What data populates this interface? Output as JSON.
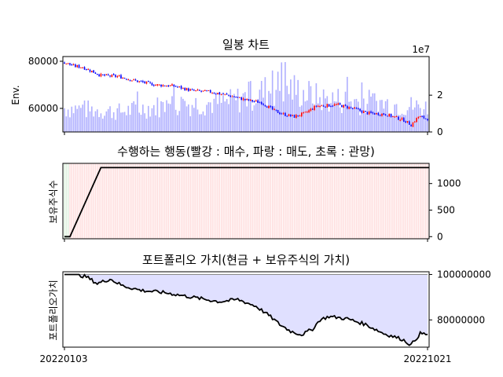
{
  "chart_data": [
    {
      "type": "candlestick+bar",
      "title": "일봉 차트",
      "ylabel": "Env.",
      "ylim": [
        50000,
        82000
      ],
      "yticks": [
        60000,
        80000
      ],
      "y2lim": [
        0,
        4.1
      ],
      "y2ticks": [
        0,
        2
      ],
      "y2_offset_label": "1e7",
      "n_days": 200,
      "close_keypoints": [
        [
          0,
          79500
        ],
        [
          5,
          78000
        ],
        [
          10,
          77500
        ],
        [
          20,
          74000
        ],
        [
          30,
          73500
        ],
        [
          40,
          71500
        ],
        [
          50,
          70000
        ],
        [
          60,
          69500
        ],
        [
          70,
          67500
        ],
        [
          80,
          67000
        ],
        [
          90,
          65500
        ],
        [
          100,
          63500
        ],
        [
          108,
          62500
        ],
        [
          115,
          59000
        ],
        [
          120,
          57500
        ],
        [
          126,
          56500
        ],
        [
          132,
          58000
        ],
        [
          138,
          61000
        ],
        [
          150,
          61500
        ],
        [
          158,
          60000
        ],
        [
          166,
          58000
        ],
        [
          176,
          57500
        ],
        [
          186,
          55000
        ],
        [
          190,
          53000
        ],
        [
          194,
          56500
        ],
        [
          200,
          55500
        ]
      ],
      "volume_keypoints": [
        [
          0,
          1.3
        ],
        [
          30,
          1.1
        ],
        [
          60,
          1.5
        ],
        [
          90,
          1.6
        ],
        [
          120,
          2.5
        ],
        [
          140,
          1.8
        ],
        [
          170,
          1.6
        ],
        [
          200,
          1.3
        ]
      ],
      "up_color": "#ff0000",
      "down_color": "#0000ff",
      "volume_color": "#b0b0ff"
    },
    {
      "type": "line",
      "title": "수행하는 행동(빨강 : 매수, 파랑 : 매도, 초록 : 관망)",
      "ylabel": "보유주식수",
      "ylim": [
        -40,
        1380
      ],
      "yticks": [
        0,
        500,
        1000
      ],
      "series_points": [
        [
          0,
          0
        ],
        [
          3,
          0
        ],
        [
          20,
          1300
        ],
        [
          200,
          1300
        ]
      ],
      "action_colors": {
        "buy": "#ffdcdc",
        "sell": "#dcdcff",
        "hold": "#dcf0dc"
      },
      "first_actions_hold": 3
    },
    {
      "type": "area",
      "title": "포트폴리오 가치(현금 + 보유주식의 가치)",
      "ylabel": "포트폴리오가치",
      "ylim": [
        68000000,
        101200000
      ],
      "yticks": [
        80000000,
        100000000
      ],
      "ytick_labels": [
        "80000000",
        "100000000"
      ],
      "baseline": 100000000,
      "x_tick_labels": [
        "20220103",
        "20221021"
      ],
      "value_keypoints": [
        [
          0,
          100000000
        ],
        [
          6,
          100000000
        ],
        [
          12,
          99000000
        ],
        [
          18,
          96000000
        ],
        [
          25,
          98000000
        ],
        [
          32,
          95000000
        ],
        [
          42,
          93000000
        ],
        [
          55,
          92000000
        ],
        [
          70,
          90000000
        ],
        [
          85,
          88000000
        ],
        [
          95,
          89000000
        ],
        [
          105,
          86000000
        ],
        [
          112,
          82000000
        ],
        [
          118,
          78000000
        ],
        [
          124,
          75000000
        ],
        [
          130,
          73500000
        ],
        [
          136,
          76000000
        ],
        [
          140,
          80000000
        ],
        [
          145,
          81500000
        ],
        [
          155,
          80500000
        ],
        [
          165,
          78000000
        ],
        [
          175,
          74000000
        ],
        [
          185,
          71500000
        ],
        [
          190,
          69000000
        ],
        [
          195,
          74000000
        ],
        [
          200,
          73500000
        ]
      ],
      "fill_color": "#e0e0ff",
      "line_color": "#000000"
    }
  ]
}
